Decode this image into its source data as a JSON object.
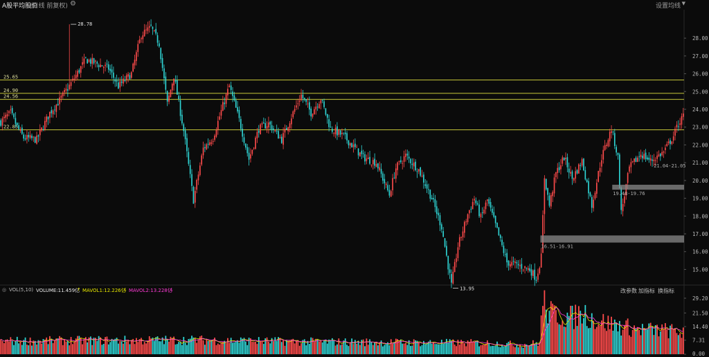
{
  "header": {
    "title": "A股平均股价",
    "subtitle": "(日线 前复权)",
    "settings_label": "设置均线"
  },
  "volume_header": {
    "indicator": "VOL(5,10)",
    "volume_label": "VOLUME:11.459亿",
    "mavol1_label": "MAVOL1:12.226亿",
    "mavol2_label": "MAVOL2:13.228亿",
    "tools": [
      "改参数",
      "加指标",
      "换指标"
    ]
  },
  "colors": {
    "background": "#0b0b0b",
    "up": "#ff4b4b",
    "down": "#2fd5d5",
    "hline": "#c9c93a",
    "axis_text": "#bbbbbb",
    "mavol1": "#e6e600",
    "mavol2": "#ff3bd6"
  },
  "chart_data": {
    "type": "candlestick",
    "price_axis": {
      "ylim": [
        14.2,
        29.6
      ],
      "ticks": [
        "15.00",
        "16.00",
        "17.00",
        "18.00",
        "19.00",
        "20.00",
        "21.00",
        "22.00",
        "23.00",
        "24.00",
        "25.00",
        "26.00",
        "27.00",
        "28.00"
      ]
    },
    "volume_axis": {
      "ylim": [
        0,
        31
      ],
      "ticks": [
        "0.00",
        "7.31",
        "14.40",
        "21.50",
        "29.20"
      ]
    },
    "horizontal_lines": [
      {
        "label": "25.65",
        "value": 25.65
      },
      {
        "label": "24.90",
        "value": 24.9
      },
      {
        "label": "24.56",
        "value": 24.56
      },
      {
        "label": "22.85",
        "value": 22.85
      }
    ],
    "annotations": [
      {
        "text": "28.78",
        "index": 42,
        "value": 28.78,
        "type": "high"
      },
      {
        "text": "13.95",
        "index": 276,
        "value": 13.95,
        "type": "low"
      }
    ],
    "gap_zones": [
      {
        "label": "16.51-16.91",
        "low": 16.51,
        "high": 16.91,
        "start_index": 331
      },
      {
        "label": "19.48-19.76",
        "low": 19.48,
        "high": 19.76,
        "start_index": 375
      },
      {
        "label": "21.04-21.05",
        "low": 21.04,
        "high": 21.05,
        "start_index": 400
      }
    ],
    "close_anchors": [
      [
        0,
        23.3
      ],
      [
        6,
        23.8
      ],
      [
        10,
        23.0
      ],
      [
        14,
        22.4
      ],
      [
        22,
        22.3
      ],
      [
        30,
        23.8
      ],
      [
        36,
        24.5
      ],
      [
        44,
        25.6
      ],
      [
        52,
        26.8
      ],
      [
        58,
        26.6
      ],
      [
        66,
        26.3
      ],
      [
        72,
        25.3
      ],
      [
        80,
        26.0
      ],
      [
        86,
        28.2
      ],
      [
        92,
        28.6
      ],
      [
        97,
        27.7
      ],
      [
        102,
        24.3
      ],
      [
        106,
        25.9
      ],
      [
        112,
        22.8
      ],
      [
        118,
        18.9
      ],
      [
        124,
        21.8
      ],
      [
        130,
        22.4
      ],
      [
        136,
        24.2
      ],
      [
        140,
        25.3
      ],
      [
        146,
        23.4
      ],
      [
        152,
        21.2
      ],
      [
        158,
        22.9
      ],
      [
        164,
        23.2
      ],
      [
        172,
        22.3
      ],
      [
        178,
        23.6
      ],
      [
        184,
        24.8
      ],
      [
        190,
        23.8
      ],
      [
        196,
        24.6
      ],
      [
        202,
        22.9
      ],
      [
        210,
        22.5
      ],
      [
        222,
        21.3
      ],
      [
        230,
        21.0
      ],
      [
        238,
        19.2
      ],
      [
        242,
        20.7
      ],
      [
        248,
        21.4
      ],
      [
        256,
        20.6
      ],
      [
        264,
        19.0
      ],
      [
        270,
        17.4
      ],
      [
        276,
        14.1
      ],
      [
        280,
        16.3
      ],
      [
        286,
        18.1
      ],
      [
        290,
        19.0
      ],
      [
        294,
        17.9
      ],
      [
        298,
        18.9
      ],
      [
        304,
        17.2
      ],
      [
        310,
        15.4
      ],
      [
        318,
        15.2
      ],
      [
        324,
        15.0
      ],
      [
        328,
        14.5
      ],
      [
        331,
        15.7
      ],
      [
        333,
        20.2
      ],
      [
        336,
        18.6
      ],
      [
        340,
        20.4
      ],
      [
        345,
        21.3
      ],
      [
        350,
        20.1
      ],
      [
        356,
        21.1
      ],
      [
        362,
        18.6
      ],
      [
        368,
        21.3
      ],
      [
        374,
        22.9
      ],
      [
        378,
        21.3
      ],
      [
        380,
        18.2
      ],
      [
        385,
        20.7
      ],
      [
        392,
        21.5
      ],
      [
        398,
        21.1
      ],
      [
        406,
        21.6
      ],
      [
        412,
        22.5
      ],
      [
        415,
        23.2
      ],
      [
        418,
        23.6
      ]
    ],
    "volume_anchors": [
      [
        0,
        6.8
      ],
      [
        60,
        7.2
      ],
      [
        120,
        7.4
      ],
      [
        180,
        6.6
      ],
      [
        240,
        6.2
      ],
      [
        300,
        5.8
      ],
      [
        320,
        5.0
      ],
      [
        330,
        6.0
      ],
      [
        332,
        28.0
      ],
      [
        336,
        21.0
      ],
      [
        344,
        20.5
      ],
      [
        350,
        19.0
      ],
      [
        356,
        22.0
      ],
      [
        365,
        17.5
      ],
      [
        375,
        15.5
      ],
      [
        390,
        13.0
      ],
      [
        405,
        12.5
      ],
      [
        418,
        11.46
      ]
    ]
  }
}
